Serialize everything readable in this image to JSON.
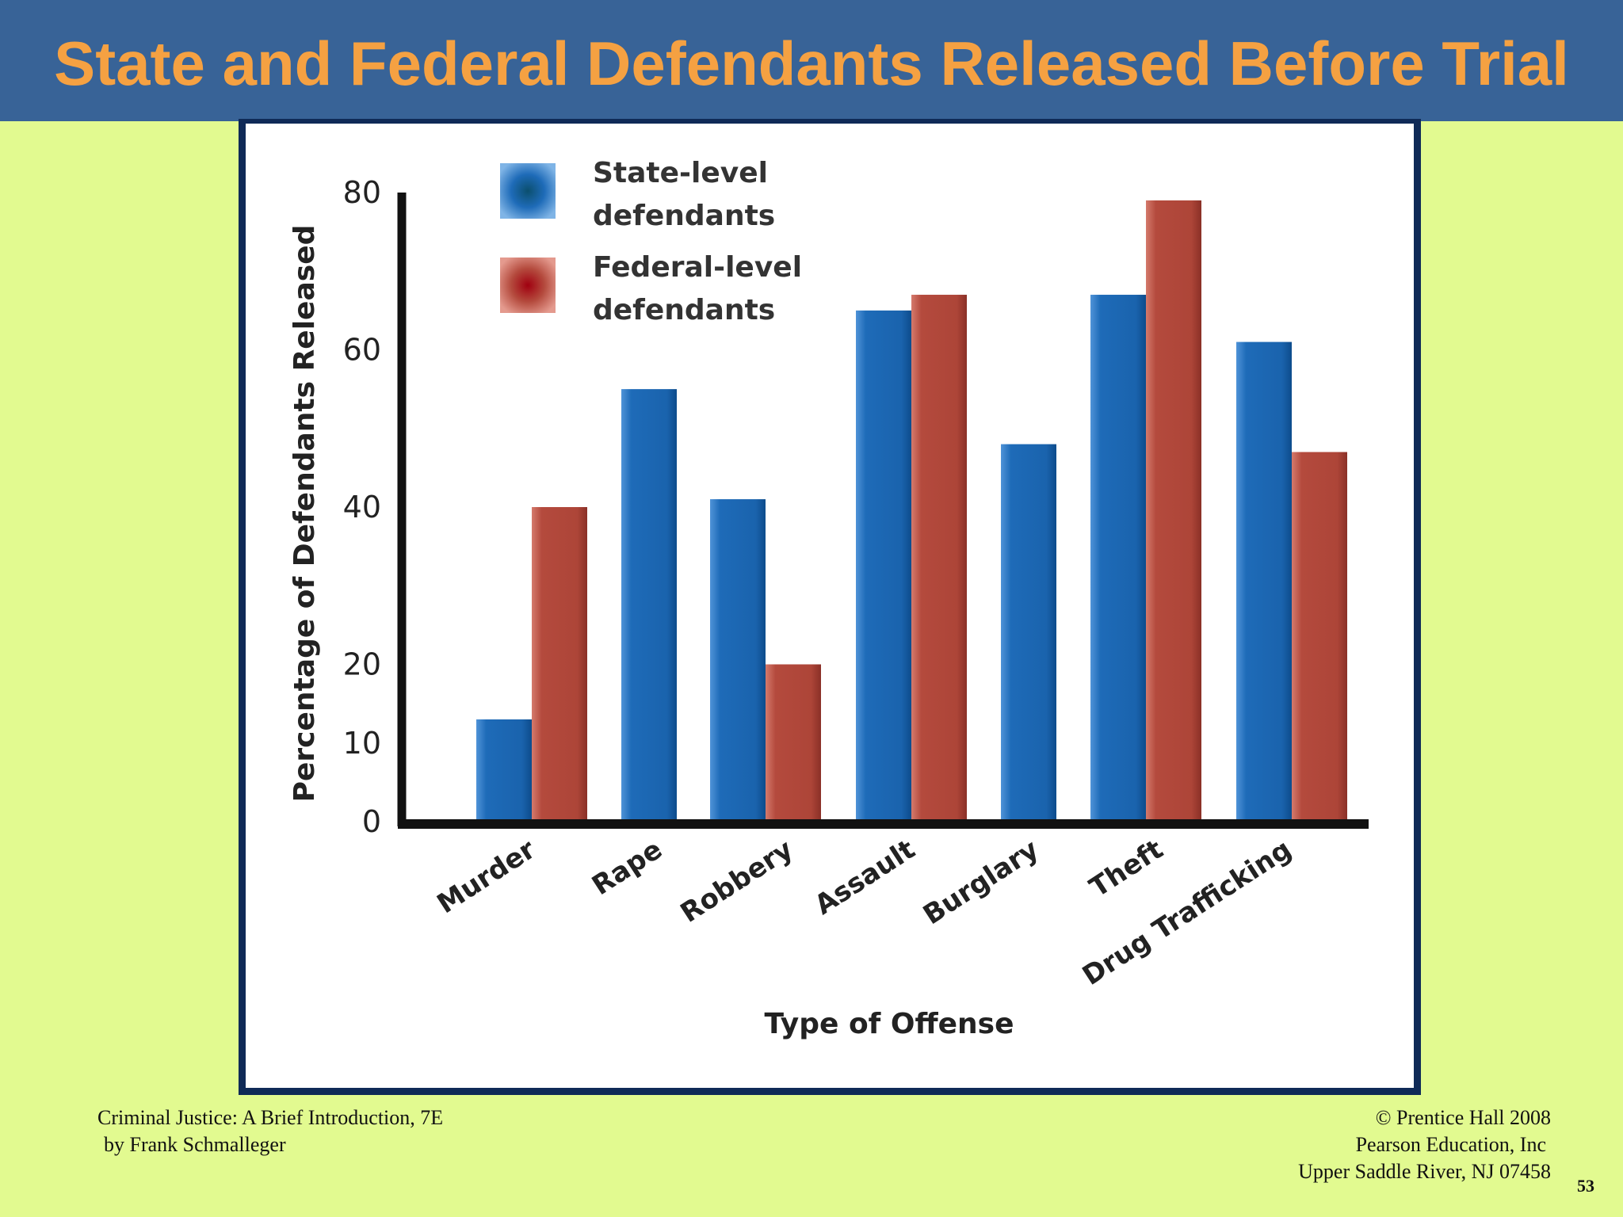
{
  "slide": {
    "title": "State and Federal Defendants Released Before Trial",
    "page_number": "53"
  },
  "footer": {
    "left_line1": "Criminal Justice: A Brief Introduction, 7E",
    "left_line2": "by Frank Schmalleger",
    "right_line1": "© Prentice Hall 2008",
    "right_line2": "Pearson Education, Inc",
    "right_line3": "Upper Saddle River, NJ 07458"
  },
  "colors": {
    "header_bg": "#386397",
    "title_text": "#f5a142",
    "slide_bg": "#e2fa90",
    "state_bar": "#1e6bb8",
    "federal_bar": "#b44a3d"
  },
  "chart_data": {
    "type": "bar",
    "categories": [
      "Murder",
      "Rape",
      "Robbery",
      "Assault",
      "Burglary",
      "Theft",
      "Drug Trafficking"
    ],
    "series": [
      {
        "name": "State-level defendants",
        "legend_lines": [
          "State-level",
          "defendants"
        ],
        "values": [
          13,
          55,
          41,
          65,
          48,
          67,
          61
        ]
      },
      {
        "name": "Federal-level defendants",
        "legend_lines": [
          "Federal-level",
          "defendants"
        ],
        "values": [
          40,
          null,
          20,
          67,
          null,
          79,
          47
        ]
      }
    ],
    "y_ticks": [
      "0",
      "10",
      "20",
      "40",
      "60",
      "80"
    ],
    "xlabel": "Type of Offense",
    "ylabel": "Percentage of Defendants Released",
    "ylim": [
      0,
      80
    ],
    "grid": false,
    "legend_position": "top-left"
  }
}
